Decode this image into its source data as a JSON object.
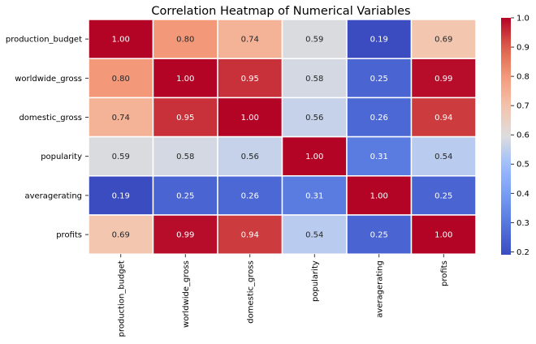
{
  "chart_data": {
    "type": "heatmap",
    "title": "Correlation Heatmap of Numerical Variables",
    "xlabel": "",
    "ylabel": "",
    "variables": [
      "production_budget",
      "worldwide_gross",
      "domestic_gross",
      "popularity",
      "averagerating",
      "profits"
    ],
    "matrix": [
      [
        1.0,
        0.8,
        0.74,
        0.59,
        0.19,
        0.69
      ],
      [
        0.8,
        1.0,
        0.95,
        0.58,
        0.25,
        0.99
      ],
      [
        0.74,
        0.95,
        1.0,
        0.56,
        0.26,
        0.94
      ],
      [
        0.59,
        0.58,
        0.56,
        1.0,
        0.31,
        0.54
      ],
      [
        0.19,
        0.25,
        0.26,
        0.31,
        1.0,
        0.25
      ],
      [
        0.69,
        0.99,
        0.94,
        0.54,
        0.25,
        1.0
      ]
    ],
    "value_format": "0.00",
    "colormap": "coolwarm",
    "colorbar": {
      "range": [
        0.19,
        1.0
      ],
      "ticks": [
        "0.2",
        "0.3",
        "0.4",
        "0.5",
        "0.6",
        "0.7",
        "0.8",
        "0.9",
        "1.0"
      ]
    },
    "cell_border_color": "#ffffff",
    "grid": false,
    "legend": "colorbar-right"
  }
}
